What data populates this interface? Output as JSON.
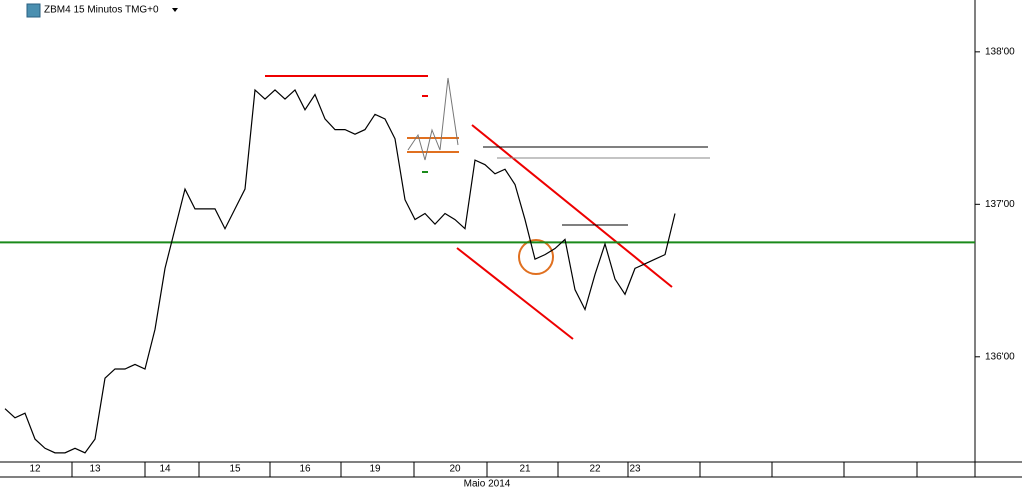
{
  "chart_data": {
    "type": "line",
    "title": "ZBM4 15 Minutos TMG+0",
    "x_label": "Maio 2014",
    "categories": [
      null,
      null,
      null,
      "12",
      null,
      null,
      null,
      null,
      null,
      "13",
      null,
      null,
      null,
      null,
      null,
      null,
      "14",
      null,
      null,
      null,
      null,
      null,
      null,
      "15",
      null,
      null,
      null,
      null,
      null,
      null,
      "16",
      null,
      null,
      null,
      null,
      null,
      null,
      "19",
      null,
      null,
      null,
      null,
      null,
      null,
      null,
      "20",
      null,
      null,
      null,
      null,
      null,
      null,
      "21",
      null,
      null,
      null,
      null,
      null,
      null,
      "22",
      null,
      null,
      null,
      "23",
      null,
      null,
      null,
      null
    ],
    "values": [
      135.66,
      135.6,
      135.63,
      135.46,
      135.4,
      135.37,
      135.37,
      135.4,
      135.37,
      135.46,
      135.86,
      135.92,
      135.92,
      135.95,
      135.92,
      136.18,
      136.58,
      136.84,
      137.1,
      136.97,
      136.97,
      136.97,
      136.84,
      136.97,
      137.1,
      137.75,
      137.69,
      137.75,
      137.69,
      137.75,
      137.62,
      137.72,
      137.56,
      137.49,
      137.49,
      137.46,
      137.49,
      137.59,
      137.56,
      137.43,
      137.03,
      136.9,
      136.94,
      136.87,
      136.94,
      136.9,
      136.84,
      137.29,
      137.26,
      137.2,
      137.23,
      137.13,
      136.9,
      136.64,
      136.67,
      136.71,
      136.77,
      136.44,
      136.31,
      136.54,
      136.74,
      136.51,
      136.41,
      136.58,
      136.61,
      136.64,
      136.67,
      136.94
    ],
    "color": "#000000",
    "ylim": [
      135.31,
      138.34
    ],
    "yticks": [
      {
        "value": 138,
        "label": "138'00"
      },
      {
        "value": 137,
        "label": "137'00"
      },
      {
        "value": 136,
        "label": "136'00"
      }
    ],
    "reference_line": {
      "value": 136.75,
      "color": "#1a8a1a"
    }
  }
}
